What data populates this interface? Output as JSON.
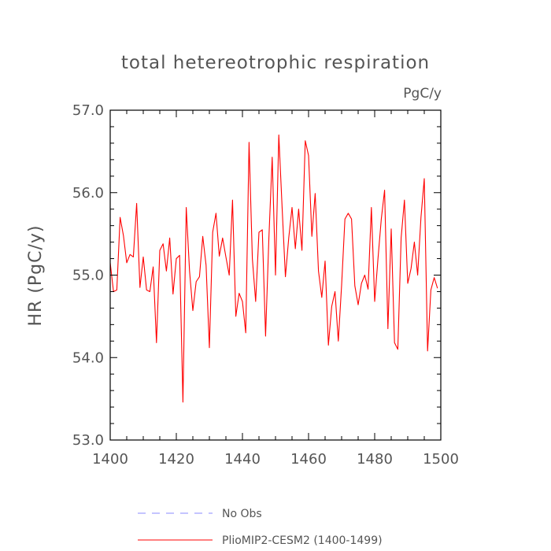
{
  "chart_data": {
    "type": "line",
    "title": "total hetereotrophic respiration",
    "units": "PgC/y",
    "xlabel": "",
    "ylabel": "HR  (PgC/y)",
    "xlim": [
      1400,
      1500
    ],
    "ylim": [
      53.0,
      57.0
    ],
    "x_ticks": [
      "1400",
      "1420",
      "1440",
      "1460",
      "1480",
      "1500"
    ],
    "y_ticks": [
      "53.0",
      "54.0",
      "55.0",
      "56.0",
      "57.0"
    ],
    "grid": false,
    "legend_position": "bottom",
    "series": [
      {
        "name": "No Obs",
        "color": "#8888ff",
        "style": "dashed",
        "x": [],
        "values": []
      },
      {
        "name": "PlioMIP2-CESM2 (1400-1499)",
        "color": "#ff0000",
        "style": "solid",
        "x": [
          1400,
          1401,
          1402,
          1403,
          1404,
          1405,
          1406,
          1407,
          1408,
          1409,
          1410,
          1411,
          1412,
          1413,
          1414,
          1415,
          1416,
          1417,
          1418,
          1419,
          1420,
          1421,
          1422,
          1423,
          1424,
          1425,
          1426,
          1427,
          1428,
          1429,
          1430,
          1431,
          1432,
          1433,
          1434,
          1435,
          1436,
          1437,
          1438,
          1439,
          1440,
          1441,
          1442,
          1443,
          1444,
          1445,
          1446,
          1447,
          1448,
          1449,
          1450,
          1451,
          1452,
          1453,
          1454,
          1455,
          1456,
          1457,
          1458,
          1459,
          1460,
          1461,
          1462,
          1463,
          1464,
          1465,
          1466,
          1467,
          1468,
          1469,
          1470,
          1471,
          1472,
          1473,
          1474,
          1475,
          1476,
          1477,
          1478,
          1479,
          1480,
          1481,
          1482,
          1483,
          1484,
          1485,
          1486,
          1487,
          1488,
          1489,
          1490,
          1491,
          1492,
          1493,
          1494,
          1495,
          1496,
          1497,
          1498,
          1499
        ],
        "values": [
          55.15,
          54.8,
          54.82,
          55.7,
          55.48,
          55.15,
          55.25,
          55.22,
          55.87,
          54.85,
          55.22,
          54.82,
          54.8,
          55.1,
          54.18,
          55.3,
          55.38,
          55.05,
          55.45,
          54.77,
          55.2,
          55.24,
          53.46,
          55.82,
          55.05,
          54.57,
          54.92,
          54.98,
          55.47,
          55.12,
          54.12,
          55.52,
          55.75,
          55.23,
          55.45,
          55.22,
          55.0,
          55.91,
          54.5,
          54.78,
          54.68,
          54.3,
          56.61,
          55.2,
          54.68,
          55.52,
          55.55,
          54.26,
          55.45,
          56.43,
          55.0,
          56.7,
          55.82,
          54.98,
          55.45,
          55.82,
          55.32,
          55.8,
          55.3,
          56.63,
          56.45,
          55.47,
          55.99,
          55.05,
          54.73,
          55.17,
          54.15,
          54.62,
          54.8,
          54.2,
          54.88,
          55.68,
          55.75,
          55.68,
          54.87,
          54.64,
          54.9,
          55.0,
          54.83,
          55.82,
          54.68,
          55.2,
          55.68,
          56.03,
          54.35,
          55.56,
          54.18,
          54.1,
          55.45,
          55.91,
          54.9,
          55.08,
          55.4,
          55.0,
          55.7,
          56.17,
          54.08,
          54.82,
          54.97,
          54.84
        ]
      }
    ]
  }
}
